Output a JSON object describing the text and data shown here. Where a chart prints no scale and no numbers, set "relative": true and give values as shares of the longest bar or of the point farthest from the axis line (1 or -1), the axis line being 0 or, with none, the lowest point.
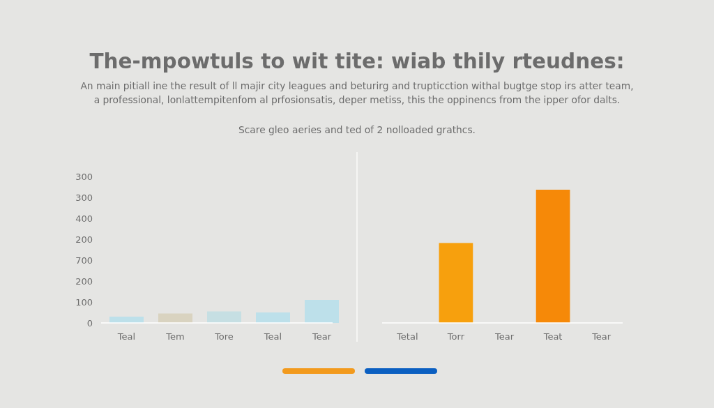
{
  "chart_data": [
    {
      "type": "bar",
      "title": "The-mpowtuls to wit tite:  wiab thily rteudnes:",
      "subtitle": "An main pitiall ine the result of ll majir city leagues and beturirg and trupticction withal bugtge stop irs atter team,\na professional, lonlattempitenfom al prfosionsatis, deper metiss, this the oppinencs from the ipper ofor dalts.",
      "annotations": [
        "300",
        "300",
        "400",
        "200",
        "700"
      ],
      "categories": [
        "Teal",
        "Tem",
        "Tore",
        "Teal",
        "Tear"
      ],
      "series": [
        {
          "color": "#0b5fc1",
          "colors": [
            "#bde0ea",
            "#d9d3c0",
            "#c6dfe3",
            "#bde0ea",
            "#bde0ea"
          ],
          "values": [
            30,
            45,
            55,
            50,
            110
          ]
        }
      ],
      "ylim": [
        0,
        200
      ],
      "yticks": [
        0,
        100,
        200
      ]
    },
    {
      "type": "bar",
      "annotations": [
        "Scare gleo aeries and ted of 2 nolloaded grathcs."
      ],
      "categories": [
        "Tetal",
        "Torr",
        "Tear",
        "Teat",
        "Tear"
      ],
      "relative": true,
      "series": [
        {
          "color": "#f29a1d",
          "colors": [
            null,
            "#f7a00d",
            null,
            "#f68908",
            null
          ],
          "values": [
            null,
            0.6,
            null,
            1,
            null
          ]
        }
      ]
    }
  ]
}
